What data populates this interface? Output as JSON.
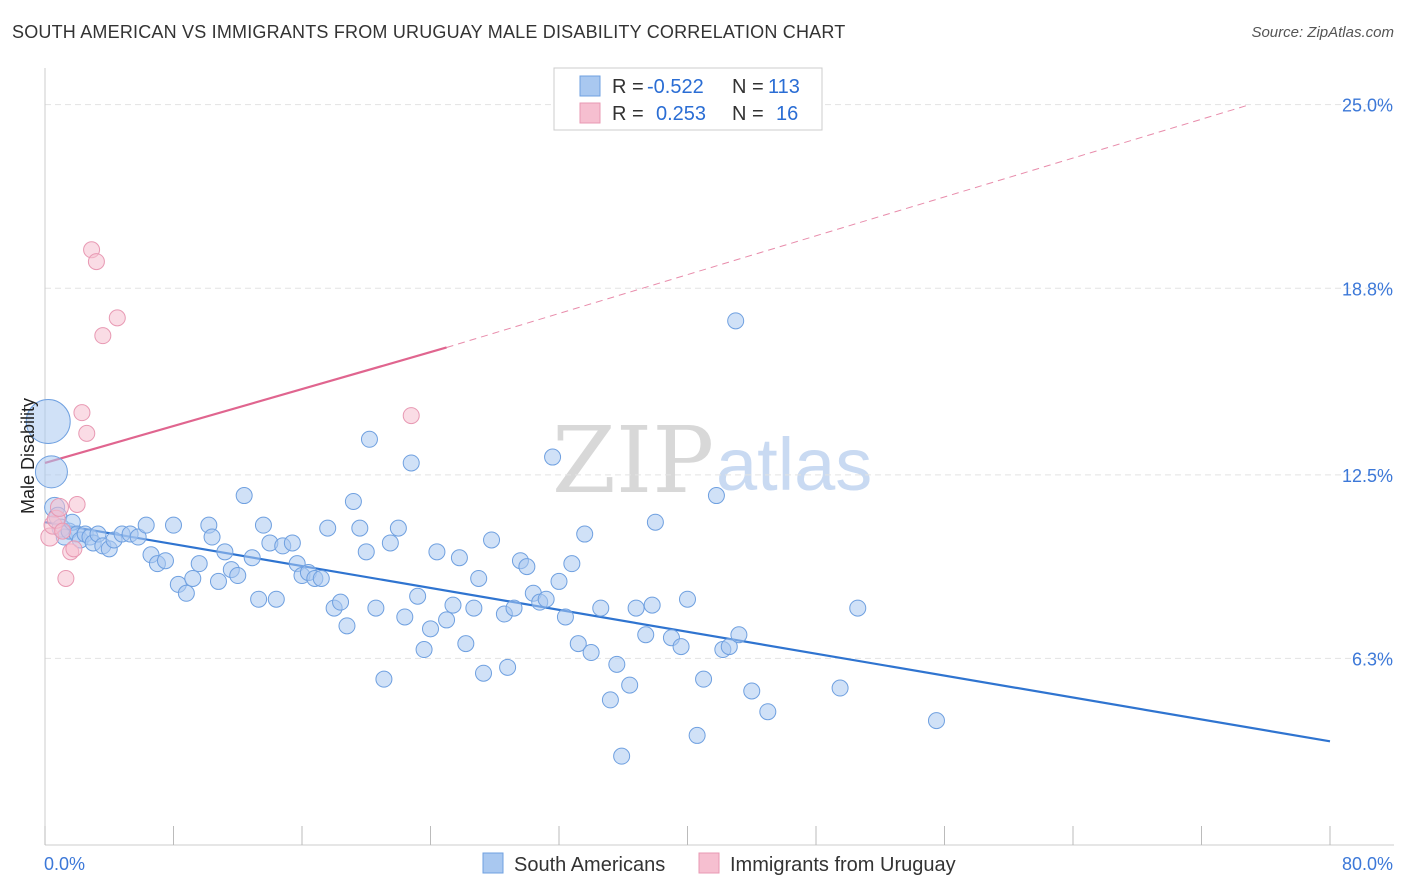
{
  "header": {
    "title": "SOUTH AMERICAN VS IMMIGRANTS FROM URUGUAY MALE DISABILITY CORRELATION CHART",
    "source": "Source: ZipAtlas.com"
  },
  "watermark": {
    "zip": "ZIP",
    "atlas": "atlas"
  },
  "legend_top": {
    "rows": [
      {
        "r_label": "R =",
        "r_value": "-0.522",
        "n_label": "N =",
        "n_value": "113",
        "color": "#a9c8f0"
      },
      {
        "r_label": "R =",
        "r_value": "0.253",
        "n_label": "N =",
        "n_value": "16",
        "color": "#f6bfd0"
      }
    ]
  },
  "chart_data": {
    "type": "scatter",
    "title": "SOUTH AMERICAN VS IMMIGRANTS FROM URUGUAY MALE DISABILITY CORRELATION CHART",
    "xlabel": "",
    "ylabel": "Male Disability",
    "xlim": [
      0,
      80
    ],
    "ylim": [
      0,
      25.9
    ],
    "x_tick_labels": [
      "0.0%",
      "80.0%"
    ],
    "y_ticks": [
      6.3,
      12.5,
      18.8,
      25.0
    ],
    "y_tick_labels": [
      "6.3%",
      "12.5%",
      "18.8%",
      "25.0%"
    ],
    "grid": true,
    "legend_placement": "top-center",
    "series": [
      {
        "name": "South Americans",
        "color": "#a9c8f0",
        "stroke": "#6fa0e0",
        "line_color": "#2f74d0",
        "trend": {
          "x0": 0,
          "y0": 10.9,
          "x1": 80,
          "y1": 3.5
        },
        "points": [
          [
            0.2,
            14.3,
            22
          ],
          [
            0.4,
            12.6,
            16
          ],
          [
            0.6,
            11.4,
            10
          ],
          [
            0.8,
            11.1,
            9
          ],
          [
            1.0,
            10.7,
            9
          ],
          [
            1.2,
            10.4,
            8
          ],
          [
            1.5,
            10.6,
            8
          ],
          [
            1.7,
            10.9,
            8
          ],
          [
            2.0,
            10.5,
            8
          ],
          [
            2.2,
            10.3,
            8
          ],
          [
            2.5,
            10.5,
            8
          ],
          [
            2.8,
            10.4,
            8
          ],
          [
            3.0,
            10.2,
            8
          ],
          [
            3.3,
            10.5,
            8
          ],
          [
            3.6,
            10.1,
            8
          ],
          [
            4.0,
            10.0,
            8
          ],
          [
            4.3,
            10.3,
            8
          ],
          [
            4.8,
            10.5,
            8
          ],
          [
            5.3,
            10.5,
            8
          ],
          [
            5.8,
            10.4,
            8
          ],
          [
            6.3,
            10.8,
            8
          ],
          [
            6.6,
            9.8,
            8
          ],
          [
            7.0,
            9.5,
            8
          ],
          [
            7.5,
            9.6,
            8
          ],
          [
            8.0,
            10.8,
            8
          ],
          [
            8.3,
            8.8,
            8
          ],
          [
            8.8,
            8.5,
            8
          ],
          [
            9.2,
            9.0,
            8
          ],
          [
            9.6,
            9.5,
            8
          ],
          [
            10.2,
            10.8,
            8
          ],
          [
            10.4,
            10.4,
            8
          ],
          [
            10.8,
            8.9,
            8
          ],
          [
            11.2,
            9.9,
            8
          ],
          [
            11.6,
            9.3,
            8
          ],
          [
            12.0,
            9.1,
            8
          ],
          [
            12.4,
            11.8,
            8
          ],
          [
            12.9,
            9.7,
            8
          ],
          [
            13.3,
            8.3,
            8
          ],
          [
            13.6,
            10.8,
            8
          ],
          [
            14.0,
            10.2,
            8
          ],
          [
            14.4,
            8.3,
            8
          ],
          [
            14.8,
            10.1,
            8
          ],
          [
            15.4,
            10.2,
            8
          ],
          [
            15.7,
            9.5,
            8
          ],
          [
            16.0,
            9.1,
            8
          ],
          [
            16.4,
            9.2,
            8
          ],
          [
            16.8,
            9.0,
            8
          ],
          [
            17.2,
            9.0,
            8
          ],
          [
            17.6,
            10.7,
            8
          ],
          [
            18.0,
            8.0,
            8
          ],
          [
            18.4,
            8.2,
            8
          ],
          [
            18.8,
            7.4,
            8
          ],
          [
            19.2,
            11.6,
            8
          ],
          [
            19.6,
            10.7,
            8
          ],
          [
            20.0,
            9.9,
            8
          ],
          [
            20.2,
            13.7,
            8
          ],
          [
            20.6,
            8.0,
            8
          ],
          [
            21.1,
            5.6,
            8
          ],
          [
            21.5,
            10.2,
            8
          ],
          [
            22.0,
            10.7,
            8
          ],
          [
            22.4,
            7.7,
            8
          ],
          [
            22.8,
            12.9,
            8
          ],
          [
            23.2,
            8.4,
            8
          ],
          [
            23.6,
            6.6,
            8
          ],
          [
            24.0,
            7.3,
            8
          ],
          [
            24.4,
            9.9,
            8
          ],
          [
            25.0,
            7.6,
            8
          ],
          [
            25.4,
            8.1,
            8
          ],
          [
            25.8,
            9.7,
            8
          ],
          [
            26.2,
            6.8,
            8
          ],
          [
            26.7,
            8.0,
            8
          ],
          [
            27.0,
            9.0,
            8
          ],
          [
            27.3,
            5.8,
            8
          ],
          [
            27.8,
            10.3,
            8
          ],
          [
            28.6,
            7.8,
            8
          ],
          [
            28.8,
            6.0,
            8
          ],
          [
            29.2,
            8.0,
            8
          ],
          [
            29.6,
            9.6,
            8
          ],
          [
            30.0,
            9.4,
            8
          ],
          [
            30.4,
            8.5,
            8
          ],
          [
            30.8,
            8.2,
            8
          ],
          [
            31.2,
            8.3,
            8
          ],
          [
            31.6,
            13.1,
            8
          ],
          [
            32.0,
            8.9,
            8
          ],
          [
            32.4,
            7.7,
            8
          ],
          [
            32.8,
            9.5,
            8
          ],
          [
            33.2,
            6.8,
            8
          ],
          [
            33.6,
            10.5,
            8
          ],
          [
            34.0,
            6.5,
            8
          ],
          [
            34.6,
            8.0,
            8
          ],
          [
            35.2,
            4.9,
            8
          ],
          [
            35.6,
            6.1,
            8
          ],
          [
            35.9,
            3.0,
            8
          ],
          [
            36.4,
            5.4,
            8
          ],
          [
            36.8,
            8.0,
            8
          ],
          [
            37.4,
            7.1,
            8
          ],
          [
            38.0,
            10.9,
            8
          ],
          [
            39.0,
            7.0,
            8
          ],
          [
            39.6,
            6.7,
            8
          ],
          [
            40.0,
            8.3,
            8
          ],
          [
            40.6,
            3.7,
            8
          ],
          [
            41.0,
            5.6,
            8
          ],
          [
            41.8,
            11.8,
            8
          ],
          [
            42.2,
            6.6,
            8
          ],
          [
            42.6,
            6.7,
            8
          ],
          [
            43.2,
            7.1,
            8
          ],
          [
            44.0,
            5.2,
            8
          ],
          [
            45.0,
            4.5,
            8
          ],
          [
            37.8,
            8.1,
            8
          ],
          [
            43.0,
            17.7,
            8
          ],
          [
            49.5,
            5.3,
            8
          ],
          [
            50.6,
            8.0,
            8
          ],
          [
            55.5,
            4.2,
            8
          ]
        ]
      },
      {
        "name": "Immigrants from Uruguay",
        "color": "#f6bfd0",
        "stroke": "#e899b3",
        "line_color": "#e0658f",
        "trend": {
          "x0": 0,
          "y0": 12.9,
          "x1": 25,
          "y1": 16.8,
          "dash_to_x": 75,
          "dash_to_y": 25.0
        },
        "points": [
          [
            0.3,
            10.4,
            9
          ],
          [
            0.5,
            10.8,
            9
          ],
          [
            0.7,
            11.0,
            9
          ],
          [
            0.9,
            11.4,
            9
          ],
          [
            1.1,
            10.6,
            8
          ],
          [
            1.3,
            9.0,
            8
          ],
          [
            1.6,
            9.9,
            8
          ],
          [
            1.8,
            10.0,
            8
          ],
          [
            2.0,
            11.5,
            8
          ],
          [
            2.3,
            14.6,
            8
          ],
          [
            2.6,
            13.9,
            8
          ],
          [
            2.9,
            20.1,
            8
          ],
          [
            3.2,
            19.7,
            8
          ],
          [
            3.6,
            17.2,
            8
          ],
          [
            4.5,
            17.8,
            8
          ],
          [
            22.8,
            14.5,
            8
          ]
        ]
      }
    ]
  },
  "legend_bottom": {
    "items": [
      {
        "label": "South Americans",
        "color": "#a9c8f0"
      },
      {
        "label": "Immigrants from Uruguay",
        "color": "#f6bfd0"
      }
    ]
  }
}
